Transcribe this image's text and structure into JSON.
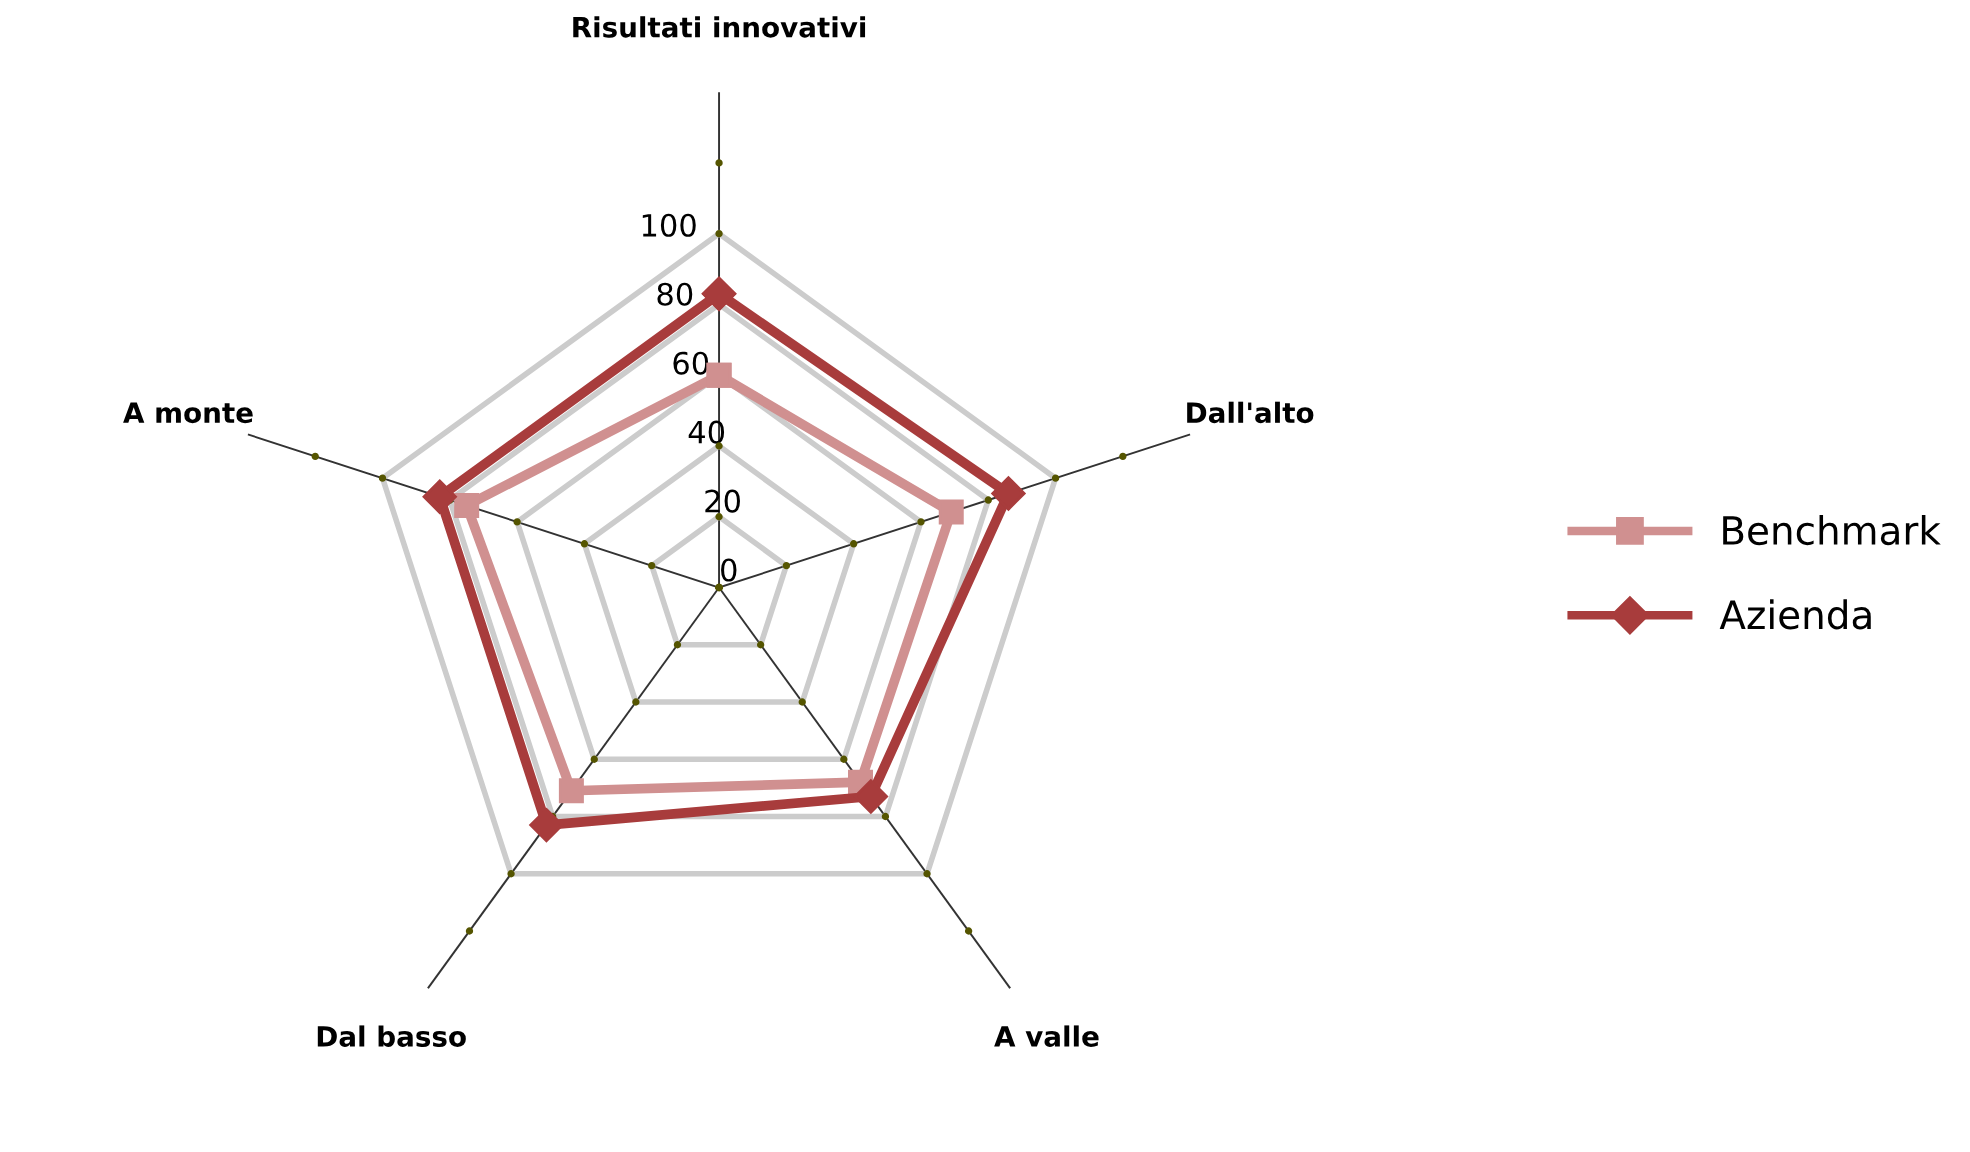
{
  "chart_data": {
    "type": "radar",
    "categories": [
      "Risultati innovativi",
      "Dall'alto",
      "A valle",
      "Dal basso",
      "A monte"
    ],
    "series": [
      {
        "name": "Benchmark",
        "color": "#d09090",
        "marker": "square",
        "values": [
          60,
          69,
          68,
          71,
          75
        ]
      },
      {
        "name": "Azienda",
        "color": "#a83c3c",
        "marker": "diamond",
        "values": [
          83,
          86,
          73,
          83,
          83
        ]
      }
    ],
    "ylim": [
      0,
      140
    ],
    "yticks": [
      0,
      20,
      40,
      60,
      80,
      100
    ],
    "grid": true,
    "legend": "right"
  }
}
